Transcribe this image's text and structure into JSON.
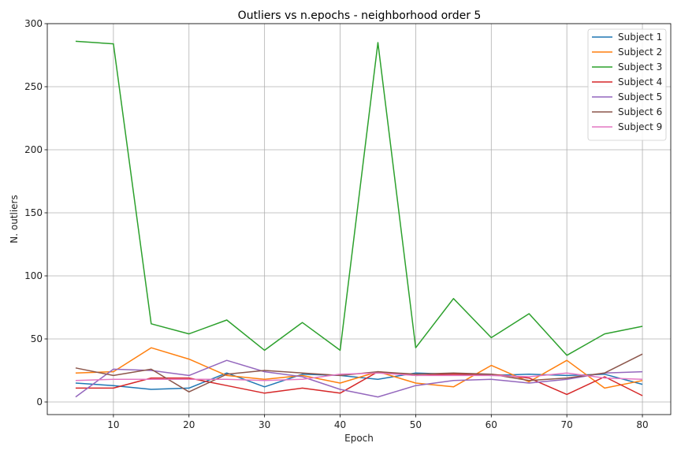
{
  "chart_data": {
    "type": "line",
    "title": "Outliers vs n.epochs - neighborhood order 5",
    "xlabel": "Epoch",
    "ylabel": "N. outliers",
    "xlim": [
      1.25,
      83.75
    ],
    "ylim": [
      -10,
      300
    ],
    "xticks": [
      10,
      20,
      30,
      40,
      50,
      60,
      70,
      80
    ],
    "yticks": [
      0,
      50,
      100,
      150,
      200,
      250,
      300
    ],
    "grid": true,
    "legend_position": "top-right",
    "x": [
      5,
      10,
      15,
      20,
      25,
      30,
      35,
      40,
      45,
      50,
      55,
      60,
      65,
      70,
      75,
      80
    ],
    "series": [
      {
        "name": "Subject 1",
        "color": "#1f77b4",
        "values": [
          15,
          13,
          10,
          11,
          23,
          12,
          22,
          21,
          18,
          23,
          22,
          21,
          22,
          21,
          22,
          14
        ]
      },
      {
        "name": "Subject 2",
        "color": "#ff7f0e",
        "values": [
          23,
          24,
          43,
          34,
          21,
          18,
          21,
          15,
          24,
          15,
          12,
          29,
          16,
          33,
          11,
          17
        ]
      },
      {
        "name": "Subject 3",
        "color": "#2ca02c",
        "values": [
          286,
          284,
          62,
          54,
          65,
          41,
          63,
          41,
          285,
          43,
          82,
          51,
          70,
          37,
          54,
          60
        ]
      },
      {
        "name": "Subject 4",
        "color": "#d62728",
        "values": [
          11,
          11,
          19,
          19,
          13,
          7,
          11,
          7,
          24,
          21,
          22,
          22,
          19,
          6,
          20,
          5
        ]
      },
      {
        "name": "Subject 5",
        "color": "#9467bd",
        "values": [
          4,
          26,
          25,
          21,
          33,
          24,
          20,
          10,
          4,
          13,
          17,
          18,
          15,
          18,
          23,
          24
        ]
      },
      {
        "name": "Subject 6",
        "color": "#8c564b",
        "values": [
          27,
          21,
          26,
          8,
          22,
          25,
          23,
          21,
          24,
          22,
          23,
          22,
          17,
          19,
          23,
          38
        ]
      },
      {
        "name": "Subject 9",
        "color": "#e377c2",
        "values": [
          17,
          18,
          18,
          18,
          18,
          17,
          18,
          22,
          23,
          21,
          21,
          21,
          20,
          23,
          19,
          18
        ]
      }
    ]
  }
}
